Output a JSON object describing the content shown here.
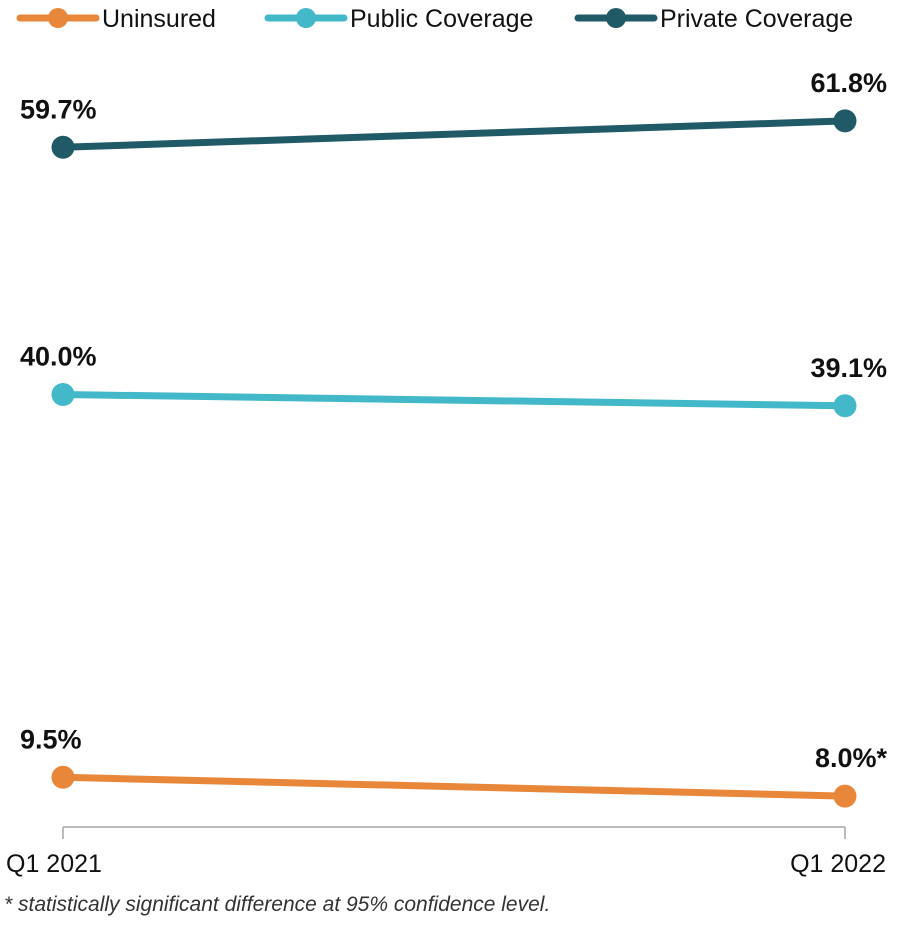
{
  "chart_data": {
    "type": "line",
    "x": [
      "Q1 2021",
      "Q1 2022"
    ],
    "series": [
      {
        "name": "Uninsured",
        "values": [
          9.5,
          8.0
        ],
        "labels": [
          "9.5%",
          "8.0%*"
        ],
        "color": "#E8873A"
      },
      {
        "name": "Public Coverage",
        "values": [
          40.0,
          39.1
        ],
        "labels": [
          "40.0%",
          "39.1%"
        ],
        "color": "#42B8C9"
      },
      {
        "name": "Private Coverage",
        "values": [
          59.7,
          61.8
        ],
        "labels": [
          "59.7%",
          "61.8%"
        ],
        "color": "#1F5A66"
      }
    ],
    "legend_position": "top",
    "grid": false
  },
  "footnote": "* statistically significant difference at 95% confidence level."
}
